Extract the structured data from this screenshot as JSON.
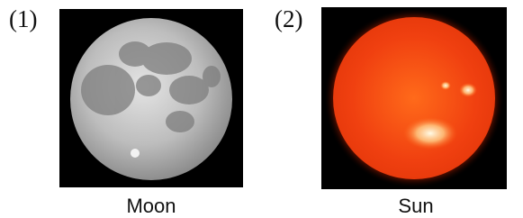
{
  "panels": [
    {
      "number": "(1)",
      "caption": "Moon"
    },
    {
      "number": "(2)",
      "caption": "Sun"
    }
  ]
}
